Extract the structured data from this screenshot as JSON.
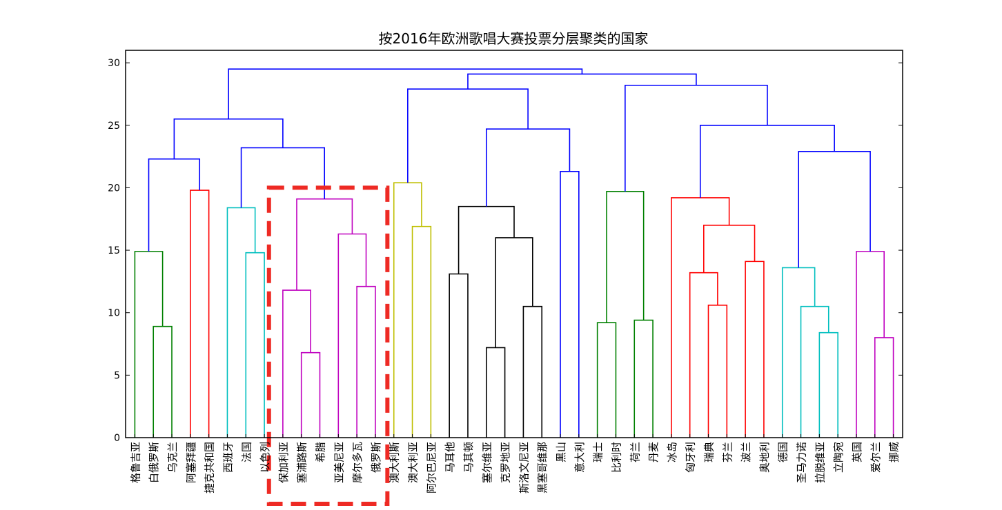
{
  "chart_data": {
    "type": "dendrogram",
    "title": "按2016年欧洲歌唱大赛投票分层聚类的国家",
    "xlabel": "",
    "ylabel": "",
    "ylim": [
      0,
      31
    ],
    "yticks": [
      0,
      5,
      10,
      15,
      20,
      25,
      30
    ],
    "leaves": [
      "格鲁吉亚",
      "白俄罗斯",
      "乌克兰",
      "阿塞拜疆",
      "捷克共和国",
      "西班牙",
      "法国",
      "以色列",
      "保加利亚",
      "塞浦路斯",
      "希腊",
      "亚美尼亚",
      "摩尔多瓦",
      "俄罗斯",
      "澳大利斯",
      "澳大利亚",
      "阿尔巴尼亚",
      "马耳他",
      "马其顿",
      "塞尔维亚",
      "克罗地亚",
      "斯洛文尼亚",
      "黑塞哥维那",
      "黑山",
      "意大利",
      "瑞士",
      "比利时",
      "荷兰",
      "丹麦",
      "冰岛",
      "匈牙利",
      "瑞典",
      "芬兰",
      "波兰",
      "奥地利",
      "德国",
      "圣马力诺",
      "拉脱维亚",
      "立陶宛",
      "英国",
      "爱尔兰",
      "挪威"
    ],
    "merges": [
      {
        "a": "L1",
        "b": "L2",
        "height": 8.9,
        "color": "#008000"
      },
      {
        "a": "L0",
        "b": "M0",
        "height": 14.9,
        "color": "#008000"
      },
      {
        "a": "L3",
        "b": "L4",
        "height": 19.8,
        "color": "#ff0000"
      },
      {
        "a": "M1",
        "b": "M2",
        "height": 22.3,
        "color": "#0000ff"
      },
      {
        "a": "L6",
        "b": "L7",
        "height": 14.8,
        "color": "#00bfbf"
      },
      {
        "a": "L5",
        "b": "M4",
        "height": 18.4,
        "color": "#00bfbf"
      },
      {
        "a": "L9",
        "b": "L10",
        "height": 6.8,
        "color": "#bf00bf"
      },
      {
        "a": "L8",
        "b": "M6",
        "height": 11.8,
        "color": "#bf00bf"
      },
      {
        "a": "L12",
        "b": "L13",
        "height": 12.1,
        "color": "#bf00bf"
      },
      {
        "a": "L11",
        "b": "M8",
        "height": 16.3,
        "color": "#bf00bf"
      },
      {
        "a": "M7",
        "b": "M9",
        "height": 19.1,
        "color": "#bf00bf"
      },
      {
        "a": "M5",
        "b": "M10",
        "height": 23.2,
        "color": "#0000ff"
      },
      {
        "a": "M3",
        "b": "M11",
        "height": 25.5,
        "color": "#0000ff"
      },
      {
        "a": "L15",
        "b": "L16",
        "height": 16.9,
        "color": "#bfbf00"
      },
      {
        "a": "L14",
        "b": "M13",
        "height": 20.4,
        "color": "#bfbf00"
      },
      {
        "a": "L17",
        "b": "L18",
        "height": 13.1,
        "color": "#000000"
      },
      {
        "a": "L19",
        "b": "L20",
        "height": 7.2,
        "color": "#000000"
      },
      {
        "a": "L21",
        "b": "L22",
        "height": 10.5,
        "color": "#000000"
      },
      {
        "a": "M16",
        "b": "M17",
        "height": 16.0,
        "color": "#000000"
      },
      {
        "a": "M15",
        "b": "M18",
        "height": 18.5,
        "color": "#000000"
      },
      {
        "a": "L23",
        "b": "L24",
        "height": 21.3,
        "color": "#0000ff"
      },
      {
        "a": "M19",
        "b": "M20",
        "height": 24.7,
        "color": "#0000ff"
      },
      {
        "a": "M14",
        "b": "M21",
        "height": 27.9,
        "color": "#0000ff"
      },
      {
        "a": "L25",
        "b": "L26",
        "height": 9.2,
        "color": "#008000"
      },
      {
        "a": "L27",
        "b": "L28",
        "height": 9.4,
        "color": "#008000"
      },
      {
        "a": "M23",
        "b": "M24",
        "height": 19.7,
        "color": "#008000"
      },
      {
        "a": "L31",
        "b": "L32",
        "height": 10.6,
        "color": "#ff0000"
      },
      {
        "a": "L30",
        "b": "M26",
        "height": 13.2,
        "color": "#ff0000"
      },
      {
        "a": "L33",
        "b": "L34",
        "height": 14.1,
        "color": "#ff0000"
      },
      {
        "a": "M27",
        "b": "M28",
        "height": 17.0,
        "color": "#ff0000"
      },
      {
        "a": "L29",
        "b": "M29",
        "height": 19.2,
        "color": "#ff0000"
      },
      {
        "a": "L37",
        "b": "L38",
        "height": 8.4,
        "color": "#00bfbf"
      },
      {
        "a": "L36",
        "b": "M31",
        "height": 10.5,
        "color": "#00bfbf"
      },
      {
        "a": "L35",
        "b": "M32",
        "height": 13.6,
        "color": "#00bfbf"
      },
      {
        "a": "L40",
        "b": "L41",
        "height": 8.0,
        "color": "#bf00bf"
      },
      {
        "a": "L39",
        "b": "M34",
        "height": 14.9,
        "color": "#bf00bf"
      },
      {
        "a": "M33",
        "b": "M35",
        "height": 22.9,
        "color": "#0000ff"
      },
      {
        "a": "M30",
        "b": "M36",
        "height": 25.0,
        "color": "#0000ff"
      },
      {
        "a": "M25",
        "b": "M37",
        "height": 28.2,
        "color": "#0000ff"
      },
      {
        "a": "M22",
        "b": "M38",
        "height": 29.1,
        "color": "#0000ff"
      },
      {
        "a": "M12",
        "b": "M39",
        "height": 29.5,
        "color": "#0000ff"
      }
    ],
    "highlight": {
      "from_leaf": 8,
      "to_leaf": 13,
      "ymax": 20,
      "color": "#ee2a24",
      "style": "dashed"
    },
    "grid": false,
    "legend": "none"
  }
}
